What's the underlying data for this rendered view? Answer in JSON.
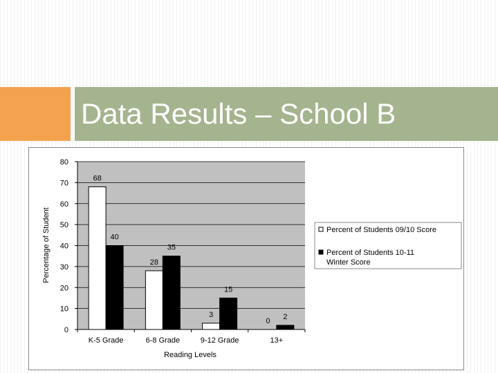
{
  "slide": {
    "title": "Data Results – School B"
  },
  "chart_data": {
    "type": "bar",
    "title": "",
    "xlabel": "Reading Levels",
    "ylabel": "Percentage of Student",
    "ylim": [
      0,
      80
    ],
    "yticks": [
      "0",
      "10",
      "20",
      "30",
      "40",
      "50",
      "60",
      "70",
      "80"
    ],
    "categories": [
      "K-5 Grade",
      "6-8 Grade",
      "9-12 Grade",
      "13+"
    ],
    "series": [
      {
        "name": "Percent of Students 09/10 Score",
        "values": [
          68,
          28,
          3,
          0
        ],
        "color": "#ffffff"
      },
      {
        "name": "Percent of Students 10-11 Winter Score",
        "values": [
          40,
          35,
          15,
          2
        ],
        "color": "#000000"
      }
    ],
    "grid": true,
    "plot_background": "#c0c0c0",
    "legend_position": "right"
  }
}
